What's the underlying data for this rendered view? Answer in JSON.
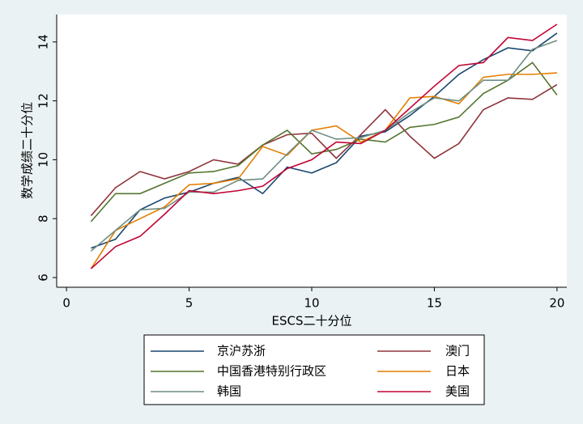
{
  "chart_data": {
    "type": "line",
    "x_label": "ESCS二十分位",
    "y_label": "数学成绩二十分位",
    "x": [
      1,
      2,
      3,
      4,
      5,
      6,
      7,
      8,
      9,
      10,
      11,
      12,
      13,
      14,
      15,
      16,
      17,
      18,
      19,
      20
    ],
    "xlim": [
      -0.4,
      20.4
    ],
    "xticks": [
      0,
      5,
      10,
      15,
      20
    ],
    "ylim": [
      5.67,
      14.93
    ],
    "yticks": [
      6,
      8,
      10,
      12,
      14
    ],
    "grid": false,
    "series": [
      {
        "name": "京沪苏浙",
        "color": "#1a476f",
        "values": [
          7.0,
          7.3,
          8.3,
          8.7,
          8.9,
          9.2,
          9.4,
          8.85,
          9.75,
          9.55,
          9.9,
          10.8,
          10.95,
          11.5,
          12.15,
          12.9,
          13.4,
          13.8,
          13.7,
          14.3
        ]
      },
      {
        "name": "澳门",
        "color": "#90353b",
        "values": [
          8.1,
          9.05,
          9.6,
          9.35,
          9.6,
          10.0,
          9.85,
          10.5,
          10.85,
          10.9,
          10.05,
          10.85,
          11.7,
          10.8,
          10.05,
          10.55,
          11.7,
          12.1,
          12.05,
          12.55
        ]
      },
      {
        "name": "中国香港特别行政区",
        "color": "#55752f",
        "values": [
          7.9,
          8.85,
          8.85,
          9.2,
          9.55,
          9.6,
          9.8,
          10.5,
          11.0,
          10.2,
          10.35,
          10.7,
          10.6,
          11.1,
          11.2,
          11.45,
          12.25,
          12.7,
          13.3,
          12.2
        ]
      },
      {
        "name": "日本",
        "color": "#e37e00",
        "values": [
          6.3,
          7.6,
          8.0,
          8.4,
          9.15,
          9.2,
          9.35,
          10.45,
          10.15,
          11.0,
          11.15,
          10.6,
          11.0,
          12.1,
          12.15,
          11.9,
          12.8,
          12.9,
          12.9,
          12.95
        ]
      },
      {
        "name": "韩国",
        "color": "#6e8e84",
        "values": [
          6.9,
          7.6,
          8.3,
          8.35,
          8.9,
          8.9,
          9.3,
          9.35,
          10.2,
          11.0,
          10.7,
          10.75,
          11.0,
          11.6,
          12.1,
          12.0,
          12.7,
          12.7,
          13.75,
          14.05
        ]
      },
      {
        "name": "美国",
        "color": "#c10534",
        "values": [
          6.3,
          7.05,
          7.4,
          8.15,
          8.95,
          8.85,
          8.95,
          9.1,
          9.7,
          10.0,
          10.6,
          10.55,
          11.0,
          11.75,
          12.5,
          13.2,
          13.3,
          14.15,
          14.05,
          14.6
        ]
      }
    ]
  }
}
